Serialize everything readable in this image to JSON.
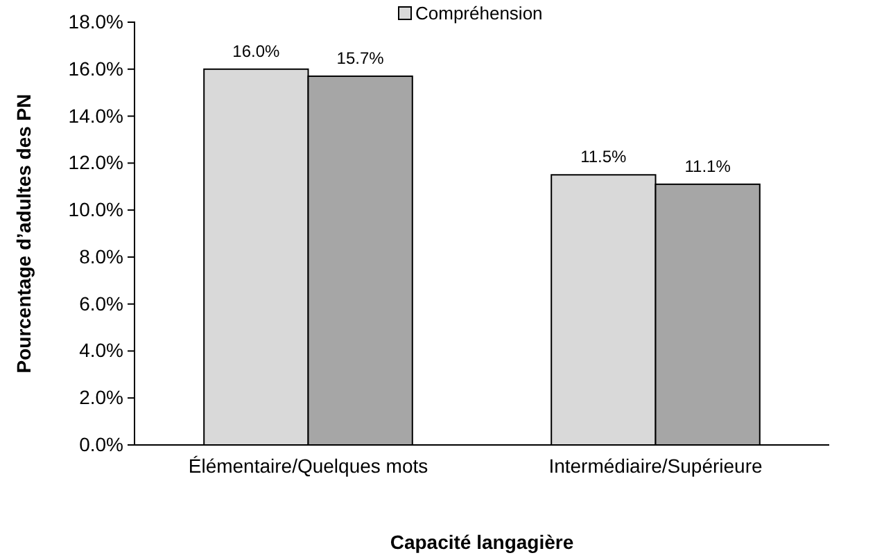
{
  "chart_data": {
    "type": "bar",
    "xlabel": "Capacité langagière",
    "ylabel": "Pourcentage d’adultes des PN",
    "categories": [
      "Élémentaire/Quelques mots",
      "Intermédiaire/Supérieure"
    ],
    "series": [
      {
        "name": "Compréhension",
        "color": "#d9d9d9",
        "values": [
          16.0,
          11.5
        ],
        "value_labels": [
          "16.0%",
          "11.5%"
        ]
      },
      {
        "color": "#a6a6a6",
        "values": [
          15.7,
          11.1
        ],
        "value_labels": [
          "15.7%",
          "11.1%"
        ]
      }
    ],
    "ylim": [
      0,
      18
    ],
    "yticks": [
      {
        "value": 0,
        "label": "0.0%"
      },
      {
        "value": 2,
        "label": "2.0%"
      },
      {
        "value": 4,
        "label": "4.0%"
      },
      {
        "value": 6,
        "label": "6.0%"
      },
      {
        "value": 8,
        "label": "8.0%"
      },
      {
        "value": 10,
        "label": "10.0%"
      },
      {
        "value": 12,
        "label": "12.0%"
      },
      {
        "value": 14,
        "label": "14.0%"
      },
      {
        "value": 16,
        "label": "16.0%"
      },
      {
        "value": 18,
        "label": "18.0%"
      }
    ],
    "grid": false,
    "legend": "top"
  }
}
